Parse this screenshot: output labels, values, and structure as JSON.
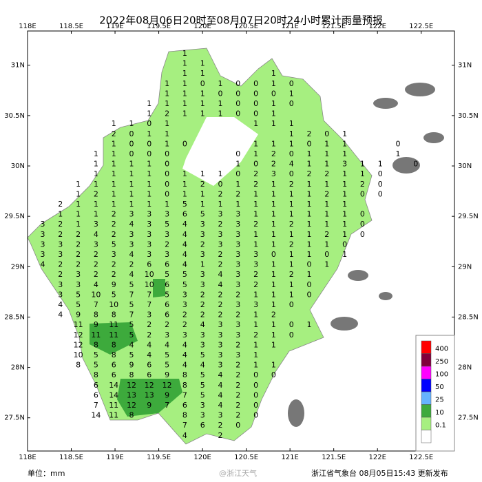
{
  "title": "2022年08月06日20时至08月07日20时24小时累计雨量预报",
  "lonlim": [
    118,
    122.88
  ],
  "latlim": [
    27.17,
    31.34
  ],
  "lonticks": [
    {
      "value": 118,
      "label": "118E"
    },
    {
      "value": 118.5,
      "label": "118.5E"
    },
    {
      "value": 119,
      "label": "119E"
    },
    {
      "value": 119.5,
      "label": "119.5E"
    },
    {
      "value": 120,
      "label": "120E"
    },
    {
      "value": 120.5,
      "label": "120.5E"
    },
    {
      "value": 121,
      "label": "121E"
    },
    {
      "value": 121.5,
      "label": "121.5E"
    },
    {
      "value": 122,
      "label": "122E"
    },
    {
      "value": 122.5,
      "label": "122.5E"
    }
  ],
  "latticks": [
    {
      "value": 31,
      "label": "31N"
    },
    {
      "value": 30.5,
      "label": "30.5N"
    },
    {
      "value": 30,
      "label": "30N"
    },
    {
      "value": 29.5,
      "label": "29.5N"
    },
    {
      "value": 29,
      "label": "29N"
    },
    {
      "value": 28.5,
      "label": "28.5N"
    },
    {
      "value": 28,
      "label": "28N"
    },
    {
      "value": 27.5,
      "label": "27.5N"
    }
  ],
  "grid_values": [
    [
      null,
      null,
      null,
      null,
      null,
      null,
      null,
      null,
      1
    ],
    [
      null,
      null,
      null,
      null,
      null,
      null,
      null,
      null,
      1,
      1
    ],
    [
      null,
      null,
      null,
      null,
      null,
      null,
      null,
      null,
      1,
      1,
      null,
      null,
      null,
      1
    ],
    [
      null,
      null,
      null,
      null,
      null,
      null,
      null,
      1,
      1,
      0,
      1,
      0,
      0,
      1,
      0
    ],
    [
      null,
      null,
      null,
      null,
      null,
      null,
      null,
      1,
      1,
      1,
      0,
      0,
      0,
      0,
      1
    ],
    [
      null,
      null,
      null,
      null,
      null,
      null,
      1,
      1,
      1,
      1,
      1,
      0,
      0,
      1,
      0
    ],
    [
      null,
      null,
      null,
      null,
      null,
      null,
      1,
      2,
      1,
      1,
      1,
      0,
      0,
      1
    ],
    [
      null,
      null,
      null,
      null,
      1,
      1,
      0,
      1,
      null,
      null,
      null,
      null,
      1,
      1,
      1
    ],
    [
      null,
      null,
      null,
      null,
      2,
      0,
      1,
      1,
      null,
      null,
      null,
      null,
      null,
      null,
      1,
      2,
      0,
      1
    ],
    [
      null,
      null,
      null,
      null,
      1,
      0,
      0,
      1,
      0,
      null,
      null,
      null,
      1,
      1,
      1,
      0,
      1,
      1,
      null,
      null,
      0
    ],
    [
      null,
      null,
      null,
      1,
      1,
      0,
      0,
      0,
      null,
      null,
      null,
      0,
      1,
      2,
      0,
      1,
      1,
      1,
      null,
      null,
      1
    ],
    [
      null,
      null,
      null,
      1,
      1,
      1,
      1,
      0,
      null,
      null,
      null,
      1,
      0,
      2,
      4,
      1,
      1,
      3,
      1,
      1,
      null,
      0
    ],
    [
      null,
      null,
      null,
      1,
      1,
      1,
      1,
      0,
      1,
      1,
      1,
      0,
      2,
      3,
      0,
      2,
      2,
      1,
      1,
      0
    ],
    [
      null,
      null,
      1,
      1,
      1,
      1,
      1,
      0,
      1,
      2,
      0,
      1,
      2,
      1,
      2,
      1,
      1,
      1,
      2,
      0
    ],
    [
      null,
      null,
      1,
      2,
      1,
      1,
      1,
      0,
      1,
      1,
      2,
      2,
      1,
      1,
      1,
      1,
      2,
      1,
      0,
      0
    ],
    [
      null,
      2,
      1,
      1,
      1,
      1,
      1,
      1,
      5,
      1,
      1,
      1,
      1,
      1,
      1,
      1,
      1,
      1
    ],
    [
      null,
      1,
      1,
      1,
      2,
      3,
      3,
      3,
      6,
      5,
      3,
      3,
      1,
      1,
      1,
      1,
      1,
      1,
      0
    ],
    [
      3,
      2,
      1,
      3,
      2,
      4,
      3,
      5,
      4,
      3,
      2,
      3,
      2,
      1,
      2,
      1,
      1,
      1,
      0
    ],
    [
      3,
      2,
      2,
      4,
      2,
      3,
      3,
      3,
      4,
      3,
      3,
      3,
      1,
      1,
      1,
      1,
      2,
      1,
      0
    ],
    [
      3,
      3,
      2,
      3,
      5,
      3,
      3,
      2,
      4,
      2,
      3,
      3,
      1,
      1,
      2,
      1,
      1,
      0
    ],
    [
      3,
      3,
      2,
      2,
      3,
      4,
      3,
      3,
      4,
      3,
      2,
      3,
      3,
      0,
      1,
      1,
      0,
      1
    ],
    [
      4,
      2,
      2,
      2,
      2,
      2,
      6,
      6,
      4,
      1,
      2,
      3,
      3,
      1,
      1,
      0,
      1
    ],
    [
      null,
      2,
      3,
      2,
      2,
      4,
      10,
      5,
      5,
      3,
      4,
      3,
      2,
      1,
      2,
      1
    ],
    [
      null,
      3,
      3,
      4,
      9,
      5,
      10,
      6,
      5,
      3,
      4,
      3,
      2,
      1,
      1,
      0
    ],
    [
      null,
      3,
      5,
      10,
      5,
      7,
      7,
      5,
      3,
      2,
      2,
      2,
      1,
      1,
      1,
      0
    ],
    [
      null,
      4,
      5,
      7,
      10,
      5,
      7,
      6,
      3,
      2,
      2,
      3,
      3,
      1,
      0
    ],
    [
      null,
      4,
      9,
      8,
      8,
      7,
      3,
      6,
      2,
      2,
      2,
      2,
      1,
      2
    ],
    [
      null,
      null,
      11,
      9,
      11,
      5,
      2,
      2,
      2,
      4,
      3,
      3,
      1,
      1,
      0,
      1
    ],
    [
      null,
      null,
      12,
      11,
      11,
      5,
      2,
      3,
      3,
      3,
      3,
      3,
      2,
      1,
      0
    ],
    [
      null,
      null,
      12,
      8,
      8,
      4,
      4,
      4,
      4,
      3,
      3,
      2,
      1,
      1
    ],
    [
      null,
      null,
      10,
      5,
      8,
      5,
      4,
      5,
      4,
      5,
      3,
      3,
      1
    ],
    [
      null,
      null,
      8,
      5,
      6,
      9,
      6,
      5,
      4,
      4,
      3,
      2,
      1,
      1
    ],
    [
      null,
      null,
      null,
      8,
      6,
      8,
      6,
      9,
      8,
      5,
      4,
      2,
      0,
      0
    ],
    [
      null,
      null,
      null,
      6,
      14,
      12,
      12,
      12,
      8,
      5,
      4,
      2,
      0
    ],
    [
      null,
      null,
      null,
      6,
      14,
      13,
      13,
      9,
      7,
      5,
      4,
      2,
      0
    ],
    [
      null,
      null,
      null,
      7,
      11,
      12,
      9,
      7,
      6,
      3,
      4,
      2,
      0
    ],
    [
      null,
      null,
      null,
      14,
      11,
      8,
      null,
      null,
      8,
      3,
      3,
      2,
      0
    ],
    [
      null,
      null,
      null,
      null,
      null,
      null,
      null,
      null,
      7,
      6,
      2,
      0
    ],
    [
      null,
      null,
      null,
      null,
      null,
      null,
      null,
      null,
      4,
      null,
      2
    ]
  ],
  "legend": [
    {
      "label": "400",
      "color": "#ff0000"
    },
    {
      "label": "250",
      "color": "#80003c"
    },
    {
      "label": "100",
      "color": "#ff00ff"
    },
    {
      "label": "50",
      "color": "#0000ff"
    },
    {
      "label": "25",
      "color": "#66b3ff"
    },
    {
      "label": "10",
      "color": "#3daa3c"
    },
    {
      "label": "0.1",
      "color": "#a6ef80"
    }
  ],
  "legend_base_color": "#ffffff",
  "unit": "单位：mm",
  "watermark": "@浙江天气",
  "footer": "浙江省气象台 08月05日15:43 更新发布"
}
